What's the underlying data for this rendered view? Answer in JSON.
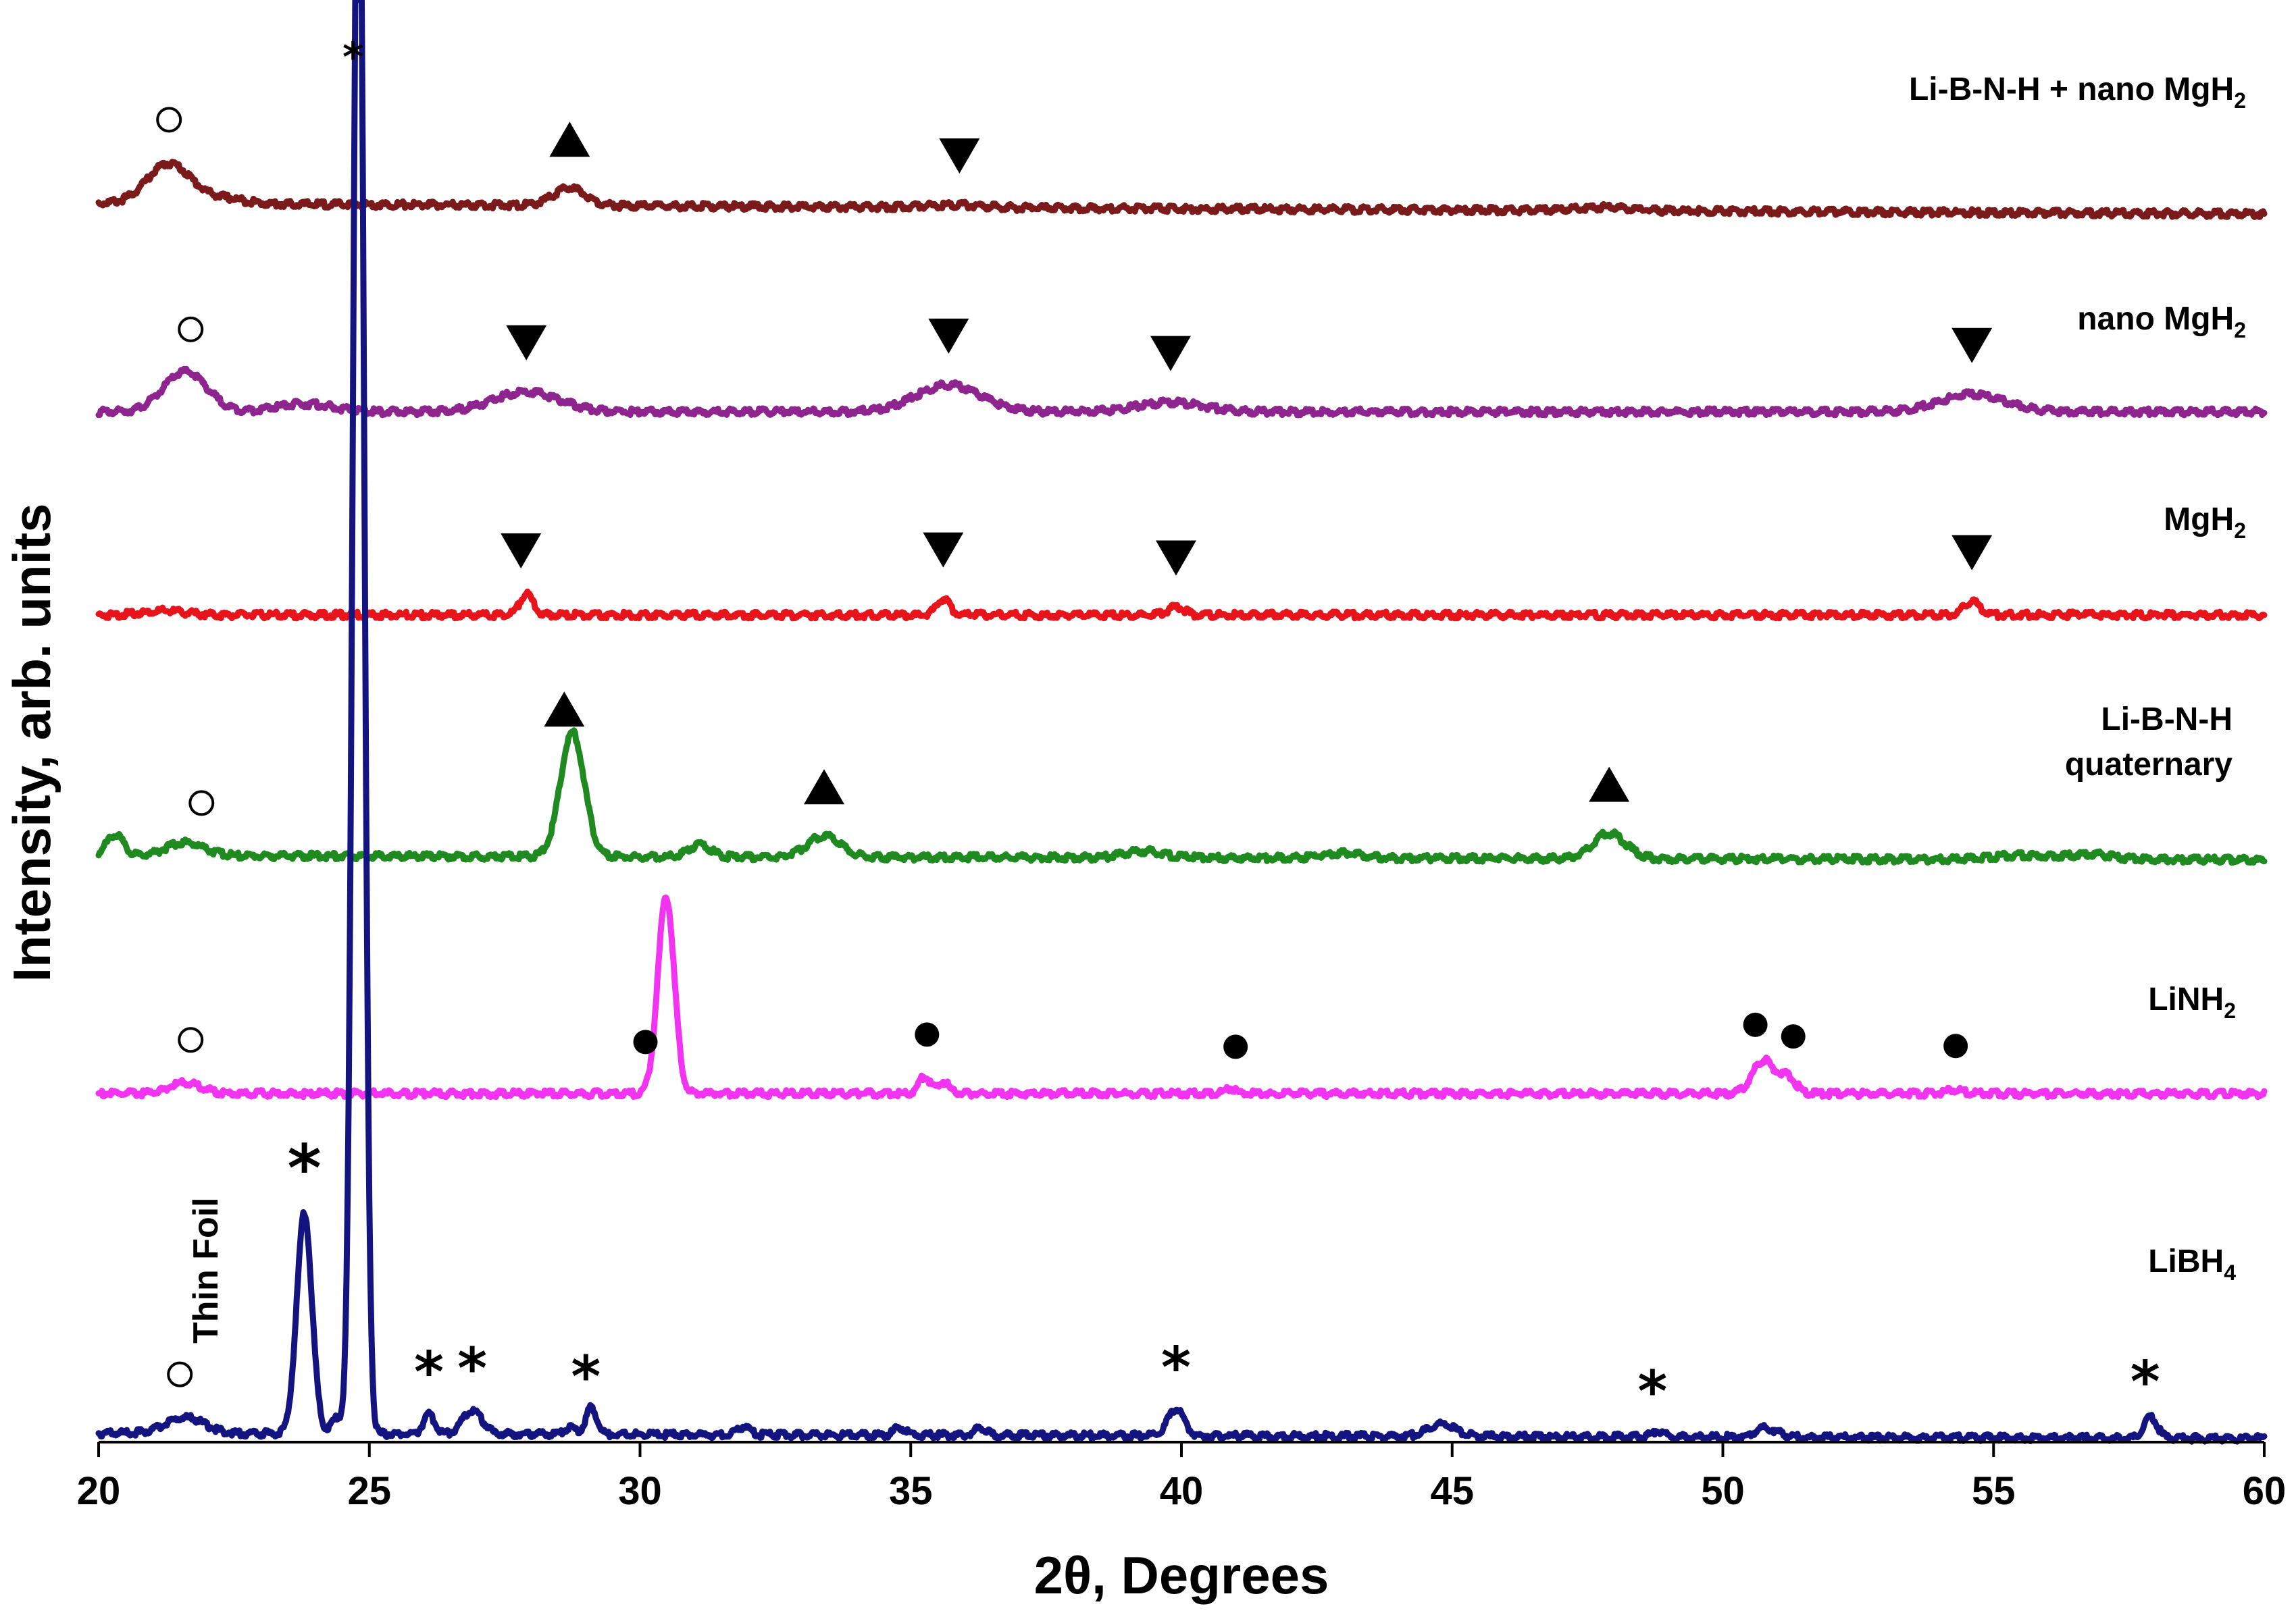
{
  "chart_data": {
    "type": "line",
    "title": "",
    "xlabel": "2θ, Degrees",
    "ylabel": "Intensity, arb. units",
    "xlim": [
      20,
      60
    ],
    "xticks": [
      "20",
      "25",
      "30",
      "35",
      "40",
      "45",
      "50",
      "55",
      "60"
    ],
    "grid": false,
    "annotation": "Thin Foil",
    "series": [
      {
        "name": "Li-B-N-H + nano MgH",
        "subscript": "2",
        "color": "#7b1a1a",
        "baseline": 92.8,
        "slope": -0.02,
        "peaks": [
          {
            "x": 21.3,
            "h": 3.0,
            "w": 0.4
          },
          {
            "x": 22.3,
            "h": 0.4,
            "w": 0.4
          },
          {
            "x": 28.7,
            "h": 1.3,
            "w": 0.3
          },
          {
            "x": 35.8,
            "h": 0.2,
            "w": 0.5
          },
          {
            "x": 47.8,
            "h": 0.25,
            "w": 0.5
          }
        ],
        "markers": [
          {
            "x": 21.3,
            "symbol": "open-circle"
          },
          {
            "x": 28.7,
            "symbol": "triangle-up"
          },
          {
            "x": 35.9,
            "symbol": "triangle-down"
          }
        ]
      },
      {
        "name": "nano MgH",
        "subscript": "2",
        "color": "#8e248e",
        "baseline": 77.2,
        "slope": 0,
        "peaks": [
          {
            "x": 21.6,
            "h": 3.0,
            "w": 0.4
          },
          {
            "x": 23.8,
            "h": 0.6,
            "w": 0.5
          },
          {
            "x": 27.9,
            "h": 1.5,
            "w": 0.6
          },
          {
            "x": 35.7,
            "h": 2.0,
            "w": 0.6
          },
          {
            "x": 39.8,
            "h": 0.7,
            "w": 0.6
          },
          {
            "x": 54.6,
            "h": 1.3,
            "w": 0.6
          }
        ],
        "markers": [
          {
            "x": 21.7,
            "symbol": "open-circle"
          },
          {
            "x": 27.9,
            "symbol": "triangle-down"
          },
          {
            "x": 35.7,
            "symbol": "triangle-down"
          },
          {
            "x": 39.8,
            "symbol": "triangle-down"
          },
          {
            "x": 54.6,
            "symbol": "triangle-down"
          }
        ]
      },
      {
        "name": "MgH",
        "subscript": "2",
        "color": "#e8141c",
        "baseline": 62.0,
        "slope": 0,
        "peaks": [
          {
            "x": 21.2,
            "h": 0.3,
            "w": 0.4
          },
          {
            "x": 27.9,
            "h": 1.6,
            "w": 0.12
          },
          {
            "x": 35.6,
            "h": 1.2,
            "w": 0.12
          },
          {
            "x": 39.9,
            "h": 0.6,
            "w": 0.15
          },
          {
            "x": 54.6,
            "h": 1.0,
            "w": 0.15
          }
        ],
        "markers": [
          {
            "x": 27.8,
            "symbol": "triangle-down"
          },
          {
            "x": 35.6,
            "symbol": "triangle-down"
          },
          {
            "x": 39.9,
            "symbol": "triangle-down"
          },
          {
            "x": 54.6,
            "symbol": "triangle-down"
          }
        ]
      },
      {
        "name": "Li-B-N-H",
        "name2": "quaternary",
        "color": "#1f8a1f",
        "baseline": 44.0,
        "slope": -0.008,
        "peaks": [
          {
            "x": 20.3,
            "h": 1.6,
            "w": 0.15
          },
          {
            "x": 21.6,
            "h": 1.0,
            "w": 0.35
          },
          {
            "x": 28.75,
            "h": 9.3,
            "w": 0.22
          },
          {
            "x": 31.1,
            "h": 0.9,
            "w": 0.2
          },
          {
            "x": 33.4,
            "h": 1.6,
            "w": 0.3
          },
          {
            "x": 39.3,
            "h": 0.5,
            "w": 0.35
          },
          {
            "x": 43.0,
            "h": 0.4,
            "w": 0.35
          },
          {
            "x": 47.9,
            "h": 1.9,
            "w": 0.3
          },
          {
            "x": 55.5,
            "h": 0.3,
            "w": 0.5
          },
          {
            "x": 56.8,
            "h": 0.4,
            "w": 0.4
          }
        ],
        "markers": [
          {
            "x": 21.9,
            "symbol": "open-circle"
          },
          {
            "x": 28.6,
            "symbol": "triangle-up"
          },
          {
            "x": 33.4,
            "symbol": "triangle-up"
          },
          {
            "x": 47.9,
            "symbol": "triangle-up"
          }
        ]
      },
      {
        "name": "LiNH",
        "subscript": "2",
        "color": "#f233f2",
        "baseline": 26.2,
        "slope": 0,
        "peaks": [
          {
            "x": 21.6,
            "h": 0.8,
            "w": 0.3
          },
          {
            "x": 30.48,
            "h": 14.8,
            "w": 0.15
          },
          {
            "x": 35.25,
            "h": 1.3,
            "w": 0.1
          },
          {
            "x": 35.6,
            "h": 0.9,
            "w": 0.1
          },
          {
            "x": 40.9,
            "h": 0.4,
            "w": 0.1
          },
          {
            "x": 50.75,
            "h": 2.5,
            "w": 0.2
          },
          {
            "x": 51.2,
            "h": 1.2,
            "w": 0.15
          },
          {
            "x": 54.3,
            "h": 0.3,
            "w": 0.15
          }
        ],
        "markers": [
          {
            "x": 30.1,
            "symbol": "filled-circle"
          },
          {
            "x": 35.3,
            "symbol": "filled-circle"
          },
          {
            "x": 41.0,
            "symbol": "filled-circle"
          },
          {
            "x": 50.6,
            "symbol": "filled-circle"
          },
          {
            "x": 51.3,
            "symbol": "filled-circle"
          },
          {
            "x": 54.3,
            "symbol": "filled-circle"
          },
          {
            "x": 21.7,
            "symbol": "open-circle"
          }
        ]
      },
      {
        "name": "LiBH",
        "subscript": "4",
        "color": "#141480",
        "baseline": 0.8,
        "slope": -0.01,
        "peaks": [
          {
            "x": 21.6,
            "h": 1.2,
            "w": 0.35
          },
          {
            "x": 23.8,
            "h": 16.5,
            "w": 0.14
          },
          {
            "x": 24.8,
            "h": 130.0,
            "w": 0.1
          },
          {
            "x": 24.4,
            "h": 1.2,
            "w": 0.1
          },
          {
            "x": 26.1,
            "h": 1.5,
            "w": 0.1
          },
          {
            "x": 26.9,
            "h": 1.8,
            "w": 0.18
          },
          {
            "x": 28.7,
            "h": 0.5,
            "w": 0.1
          },
          {
            "x": 29.1,
            "h": 2.0,
            "w": 0.1
          },
          {
            "x": 31.9,
            "h": 0.6,
            "w": 0.12
          },
          {
            "x": 34.8,
            "h": 0.6,
            "w": 0.1
          },
          {
            "x": 36.3,
            "h": 0.6,
            "w": 0.1
          },
          {
            "x": 39.9,
            "h": 2.0,
            "w": 0.15
          },
          {
            "x": 44.8,
            "h": 0.9,
            "w": 0.25
          },
          {
            "x": 48.8,
            "h": 0.5,
            "w": 0.1
          },
          {
            "x": 50.8,
            "h": 0.7,
            "w": 0.2
          },
          {
            "x": 57.9,
            "h": 1.6,
            "w": 0.12
          }
        ],
        "markers": [
          {
            "x": 21.5,
            "symbol": "open-circle"
          },
          {
            "x": 23.8,
            "symbol": "star-large"
          },
          {
            "x": 24.7,
            "symbol": "star-small"
          },
          {
            "x": 26.1,
            "symbol": "star"
          },
          {
            "x": 26.9,
            "symbol": "star"
          },
          {
            "x": 29.0,
            "symbol": "star"
          },
          {
            "x": 39.9,
            "symbol": "star"
          },
          {
            "x": 48.7,
            "symbol": "star"
          },
          {
            "x": 57.8,
            "symbol": "star"
          }
        ]
      }
    ]
  }
}
